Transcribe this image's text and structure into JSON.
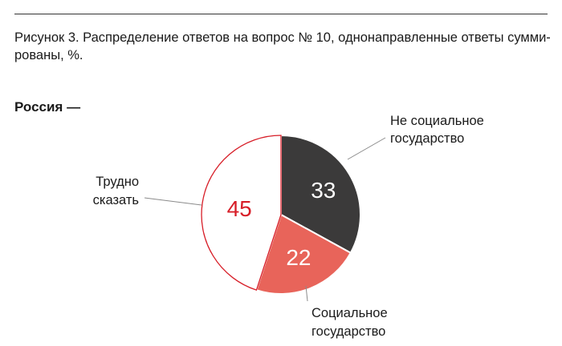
{
  "figure": {
    "caption_line1": "Рисунок 3. Распределение ответов на вопрос № 10, однонаправленные ответы сумми-",
    "caption_line2": "рованы, %.",
    "region": "Россия —"
  },
  "colors": {
    "dark": "#3b3a3a",
    "red": "#e8645a",
    "white": "#ffffff",
    "accent_red": "#d71e28"
  },
  "chart_data": {
    "type": "pie",
    "title": "",
    "slices": [
      {
        "label_lines": [
          "Не социальное",
          "государство"
        ],
        "value": 33,
        "color": "#3b3a3a"
      },
      {
        "label_lines": [
          "Социальное",
          "государство"
        ],
        "value": 22,
        "color": "#e8645a"
      },
      {
        "label_lines": [
          "Трудно",
          "сказать"
        ],
        "value": 45,
        "color": "#ffffff"
      }
    ]
  }
}
